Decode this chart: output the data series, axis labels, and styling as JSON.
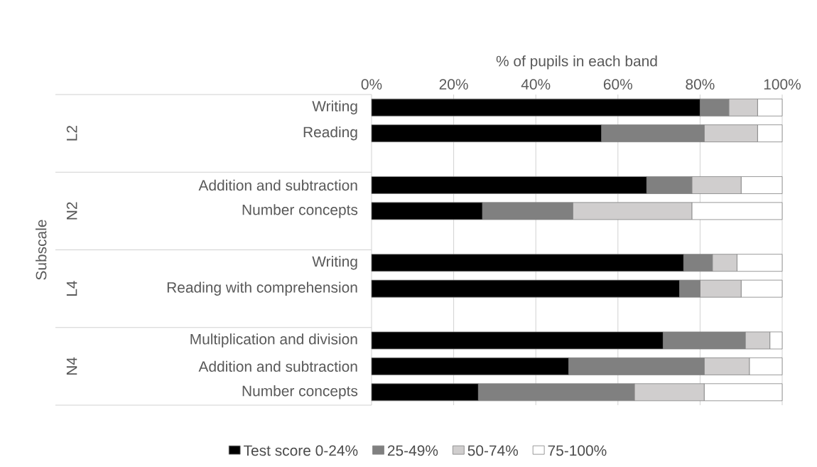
{
  "chart_data": {
    "type": "bar",
    "orientation": "horizontal",
    "stacked": true,
    "xlabel": "% of pupils in each band",
    "categories": [
      "Writing",
      "Reading",
      null,
      "Addition and subtraction",
      "Number concepts",
      null,
      "Writing",
      "Reading with comprehension",
      null,
      "Multiplication and division",
      "Addition and subtraction",
      "Number concepts"
    ],
    "series": [
      {
        "name": "Test score 0-24%",
        "color": "#000000",
        "values": [
          80,
          56,
          null,
          67,
          27,
          null,
          76,
          75,
          null,
          71,
          48,
          26
        ]
      },
      {
        "name": "25-49%",
        "color": "#808080",
        "values": [
          7,
          25,
          null,
          11,
          22,
          null,
          7,
          5,
          null,
          20,
          33,
          38
        ]
      },
      {
        "name": "50-74%",
        "color": "#d0cece",
        "values": [
          7,
          13,
          null,
          12,
          29,
          null,
          6,
          10,
          null,
          6,
          11,
          17
        ]
      },
      {
        "name": "75-100%",
        "color": "#ffffff",
        "values": [
          6,
          6,
          null,
          10,
          22,
          null,
          11,
          10,
          null,
          3,
          8,
          19
        ]
      }
    ],
    "xlim": [
      0,
      100
    ],
    "xticks": [
      {
        "value": 0,
        "label": "0%"
      },
      {
        "value": 20,
        "label": "20%"
      },
      {
        "value": 40,
        "label": "40%"
      },
      {
        "value": 60,
        "label": "60%"
      },
      {
        "value": 80,
        "label": "80%"
      },
      {
        "value": 100,
        "label": "100%"
      }
    ],
    "annotations": [
      "Subscale",
      "L2",
      "N2",
      "L4",
      "N4"
    ],
    "grid": "x",
    "legend": "bottom"
  }
}
